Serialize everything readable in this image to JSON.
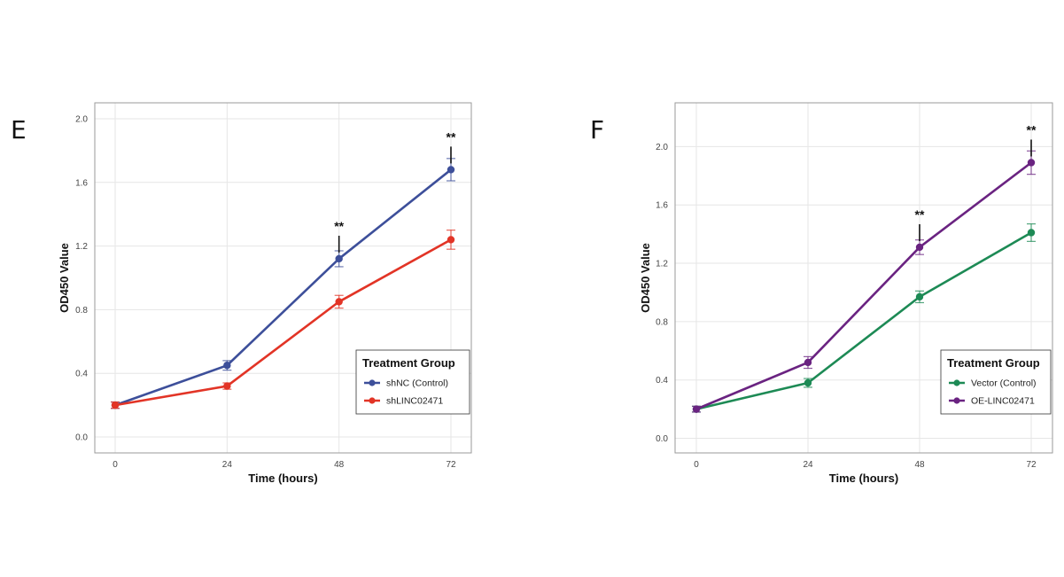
{
  "panels": [
    {
      "letter": "E"
    },
    {
      "letter": "F"
    }
  ],
  "chart_data": [
    {
      "type": "line",
      "x": [
        0,
        24,
        48,
        72
      ],
      "xlabel": "Time (hours)",
      "ylabel": "OD450 Value",
      "ylim": [
        -0.1,
        2.1
      ],
      "yticks": [
        "0.0",
        "0.4",
        "0.8",
        "1.2",
        "1.6",
        "2.0"
      ],
      "xticks": [
        "0",
        "24",
        "48",
        "72"
      ],
      "grid": true,
      "legend_title": "Treatment Group",
      "legend_position": "bottom-right",
      "series": [
        {
          "name": "shNC (Control)",
          "color": "#3d4f9a",
          "values": [
            0.2,
            0.45,
            1.12,
            1.68
          ],
          "errors": [
            0.02,
            0.03,
            0.05,
            0.07
          ]
        },
        {
          "name": "shLINC02471",
          "color": "#e23426",
          "values": [
            0.2,
            0.32,
            0.85,
            1.24
          ],
          "errors": [
            0.02,
            0.02,
            0.04,
            0.06
          ]
        }
      ],
      "annotations": [
        {
          "text": "**",
          "x": 48,
          "y": 1.12
        },
        {
          "text": "**",
          "x": 72,
          "y": 1.68
        }
      ]
    },
    {
      "type": "line",
      "x": [
        0,
        24,
        48,
        72
      ],
      "xlabel": "Time (hours)",
      "ylabel": "OD450 Value",
      "ylim": [
        -0.1,
        2.3
      ],
      "yticks": [
        "0.0",
        "0.4",
        "0.8",
        "1.2",
        "1.6",
        "2.0"
      ],
      "xticks": [
        "0",
        "24",
        "48",
        "72"
      ],
      "grid": true,
      "legend_title": "Treatment Group",
      "legend_position": "bottom-right",
      "series": [
        {
          "name": "Vector (Control)",
          "color": "#1d8a55",
          "values": [
            0.2,
            0.38,
            0.97,
            1.41
          ],
          "errors": [
            0.02,
            0.03,
            0.04,
            0.06
          ]
        },
        {
          "name": "OE-LINC02471",
          "color": "#6a2381",
          "values": [
            0.2,
            0.52,
            1.31,
            1.89
          ],
          "errors": [
            0.02,
            0.04,
            0.05,
            0.08
          ]
        }
      ],
      "annotations": [
        {
          "text": "**",
          "x": 48,
          "y": 1.31
        },
        {
          "text": "**",
          "x": 72,
          "y": 1.89
        }
      ]
    }
  ]
}
